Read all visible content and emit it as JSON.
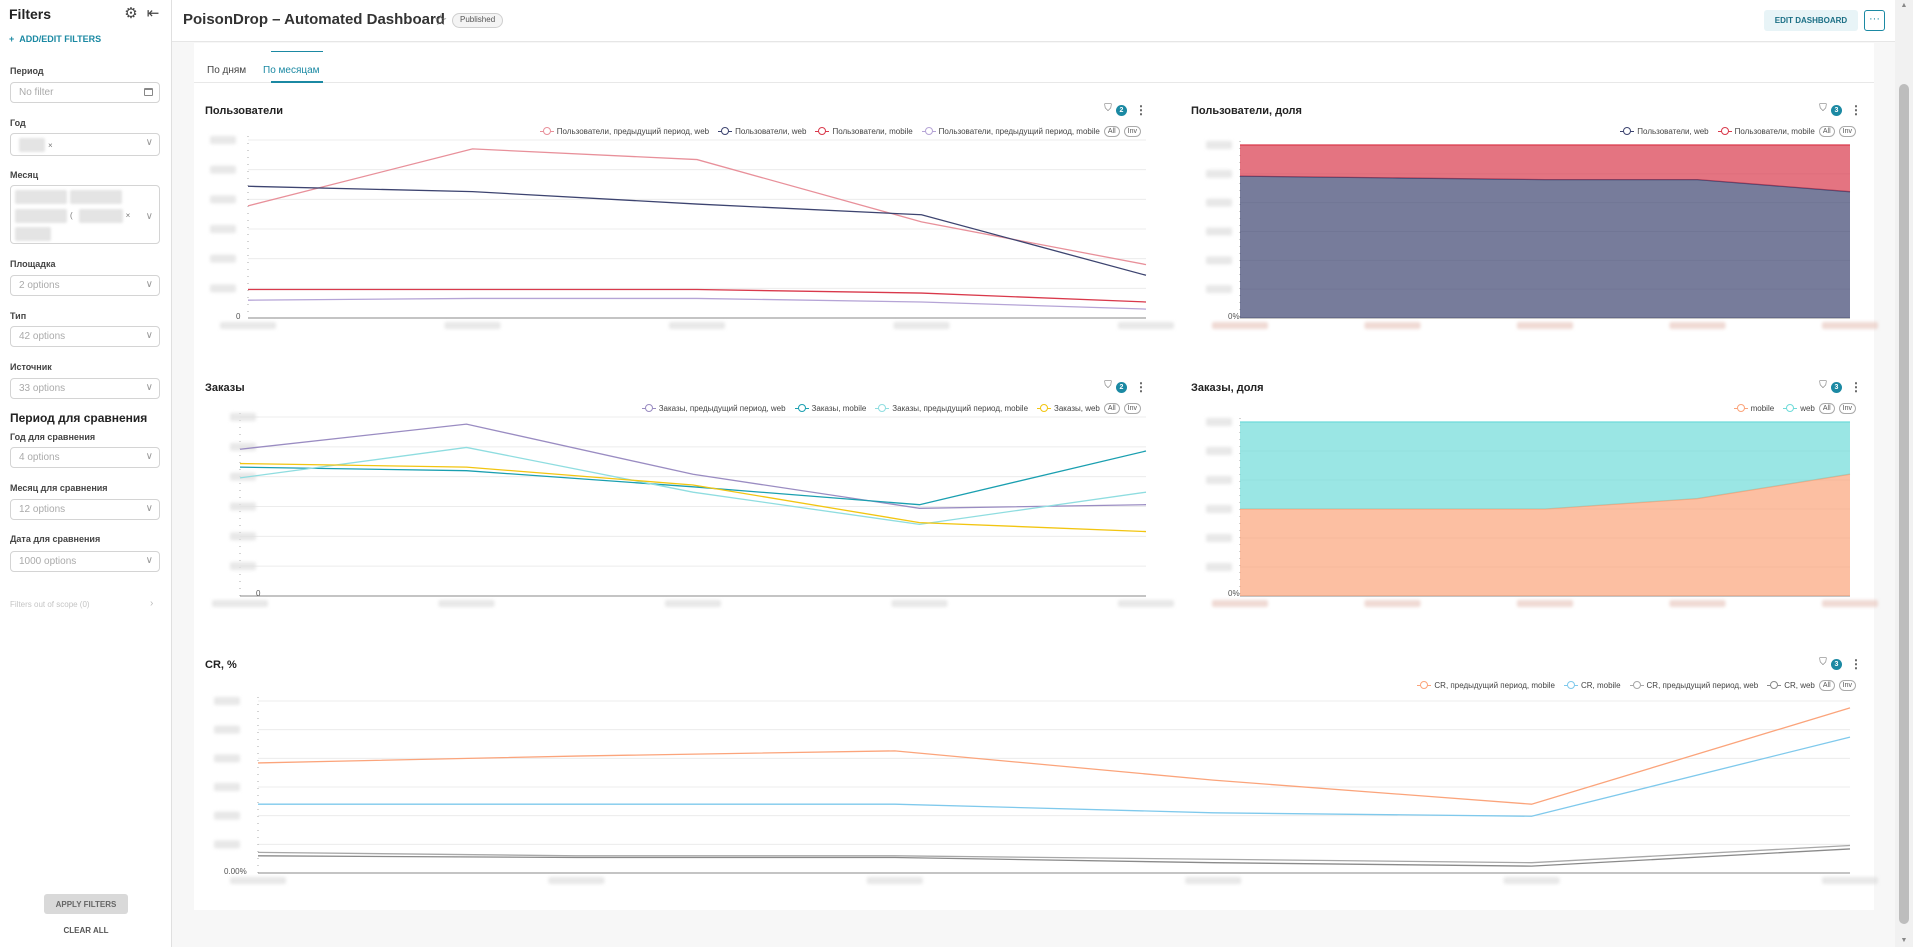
{
  "sidebar": {
    "title": "Filters",
    "add_filters": "ADD/EDIT FILTERS",
    "filters": [
      {
        "label": "Период",
        "value": "No filter"
      },
      {
        "label": "Год",
        "value": ""
      },
      {
        "label": "Месяц",
        "value": ""
      },
      {
        "label": "Площадка",
        "value": "2 options"
      },
      {
        "label": "Тип",
        "value": "42 options"
      },
      {
        "label": "Источник",
        "value": "33 options"
      }
    ],
    "compare_section": "Период для сравнения",
    "compare_filters": [
      {
        "label": "Год для сравнения",
        "value": "4 options"
      },
      {
        "label": "Месяц для сравнения",
        "value": "12 options"
      },
      {
        "label": "Дата для сравнения",
        "value": "1000 options"
      }
    ],
    "out_of_scope": "Filters out of scope (0)",
    "apply": "APPLY FILTERS",
    "clear": "CLEAR ALL"
  },
  "header": {
    "title": "PoisonDrop – Automated Dashboard",
    "status": "Published",
    "edit": "EDIT DASHBOARD",
    "more": "···"
  },
  "tabs": [
    {
      "label": "По дням",
      "active": false
    },
    {
      "label": "По месяцам",
      "active": true
    }
  ],
  "panels": {
    "users": {
      "title": "Пользователи",
      "filter_count": "2",
      "pill_all": "All",
      "pill_inv": "Inv"
    },
    "users_share": {
      "title": "Пользователи, доля",
      "filter_count": "3",
      "pill_all": "All",
      "pill_inv": "Inv"
    },
    "orders": {
      "title": "Заказы",
      "filter_count": "2",
      "pill_all": "All",
      "pill_inv": "Inv"
    },
    "orders_share": {
      "title": "Заказы, доля",
      "filter_count": "3",
      "pill_all": "All",
      "pill_inv": "Inv"
    },
    "cr": {
      "title": "CR, %",
      "filter_count": "3",
      "pill_all": "All",
      "pill_inv": "Inv"
    }
  },
  "colors": {
    "accent": "#1b89a3",
    "navy": "#3d4470",
    "salmon": "#e8909a",
    "red": "#d9394b",
    "lavender": "#b5a4d6",
    "purple": "#9a8cc2",
    "teal": "#1a9fb0",
    "cyan_light": "#8fdde0",
    "yellow": "#f2c511",
    "orange": "#fba47b",
    "turquoise": "#6fdbd9",
    "light_blue": "#7fc9ec",
    "gray": "#a8a8a8",
    "dark_gray": "#8a8a8a"
  },
  "icons": {
    "gear": "gear-icon",
    "collapse": "collapse-left-icon",
    "star": "star-icon",
    "filter": "filter-icon",
    "menu": "vertical-dots-icon",
    "calendar": "calendar-icon"
  },
  "chart_data": [
    {
      "id": "users",
      "type": "line",
      "title": "Пользователи",
      "x": [
        0,
        1,
        2,
        3,
        4
      ],
      "ylim": [
        0,
        100
      ],
      "y_tick_labels": [
        "0"
      ],
      "series": [
        {
          "name": "Пользователи, предыдущий период, web",
          "color": "#e8909a",
          "values": [
            63,
            95,
            89,
            54,
            30
          ]
        },
        {
          "name": "Пользователи, web",
          "color": "#3d4470",
          "values": [
            74,
            71,
            64,
            58,
            24
          ]
        },
        {
          "name": "Пользователи, mobile",
          "color": "#d9394b",
          "values": [
            16,
            16,
            16,
            14,
            9
          ]
        },
        {
          "name": "Пользователи, предыдущий период, mobile",
          "color": "#b5a4d6",
          "values": [
            10,
            11,
            11,
            9,
            5
          ]
        }
      ]
    },
    {
      "id": "users_share",
      "type": "area",
      "title": "Пользователи, доля",
      "x": [
        0,
        1,
        2,
        3,
        4
      ],
      "ylim": [
        0,
        100
      ],
      "y_tick_labels": [
        "0%"
      ],
      "stacked": true,
      "series": [
        {
          "name": "Пользователи, web",
          "color": "#3d4470",
          "values": [
            82,
            81,
            80,
            80,
            73
          ]
        },
        {
          "name": "Пользователи, mobile",
          "color": "#d9394b",
          "values": [
            18,
            19,
            20,
            20,
            27
          ]
        }
      ]
    },
    {
      "id": "orders",
      "type": "line",
      "title": "Заказы",
      "x": [
        0,
        1,
        2,
        3,
        4
      ],
      "ylim": [
        0,
        100
      ],
      "y_tick_labels": [
        "0"
      ],
      "series": [
        {
          "name": "Заказы, предыдущий период, web",
          "color": "#9a8cc2",
          "values": [
            82,
            96,
            68,
            49,
            51
          ]
        },
        {
          "name": "Заказы, mobile",
          "color": "#1a9fb0",
          "values": [
            72,
            70,
            61,
            51,
            81
          ]
        },
        {
          "name": "Заказы, предыдущий период, mobile",
          "color": "#8fdde0",
          "values": [
            66,
            83,
            58,
            40,
            58
          ]
        },
        {
          "name": "Заказы, web",
          "color": "#f2c511",
          "values": [
            74,
            72,
            62,
            41,
            36
          ]
        }
      ]
    },
    {
      "id": "orders_share",
      "type": "area",
      "title": "Заказы, доля",
      "x": [
        0,
        1,
        2,
        3,
        4
      ],
      "ylim": [
        0,
        100
      ],
      "y_tick_labels": [
        "0%"
      ],
      "stacked": true,
      "series": [
        {
          "name": "mobile",
          "color": "#fba47b",
          "values": [
            50,
            50,
            50,
            56,
            70
          ]
        },
        {
          "name": "web",
          "color": "#6fdbd9",
          "values": [
            50,
            50,
            50,
            44,
            30
          ]
        }
      ]
    },
    {
      "id": "cr",
      "type": "line",
      "title": "CR, %",
      "x": [
        0,
        1,
        2,
        3,
        4,
        5
      ],
      "ylim": [
        0,
        100
      ],
      "y_tick_labels": [
        "0.00%"
      ],
      "series": [
        {
          "name": "CR, предыдущий период, mobile",
          "color": "#fba47b",
          "values": [
            64,
            68,
            71,
            54,
            40,
            96
          ]
        },
        {
          "name": "CR, mobile",
          "color": "#7fc9ec",
          "values": [
            40,
            40,
            40,
            35,
            33,
            79
          ]
        },
        {
          "name": "CR, предыдущий период, web",
          "color": "#a8a8a8",
          "values": [
            12,
            10,
            10,
            8,
            6,
            16
          ]
        },
        {
          "name": "CR, web",
          "color": "#8a8a8a",
          "values": [
            10,
            9,
            9,
            6,
            4,
            14
          ]
        }
      ]
    }
  ]
}
